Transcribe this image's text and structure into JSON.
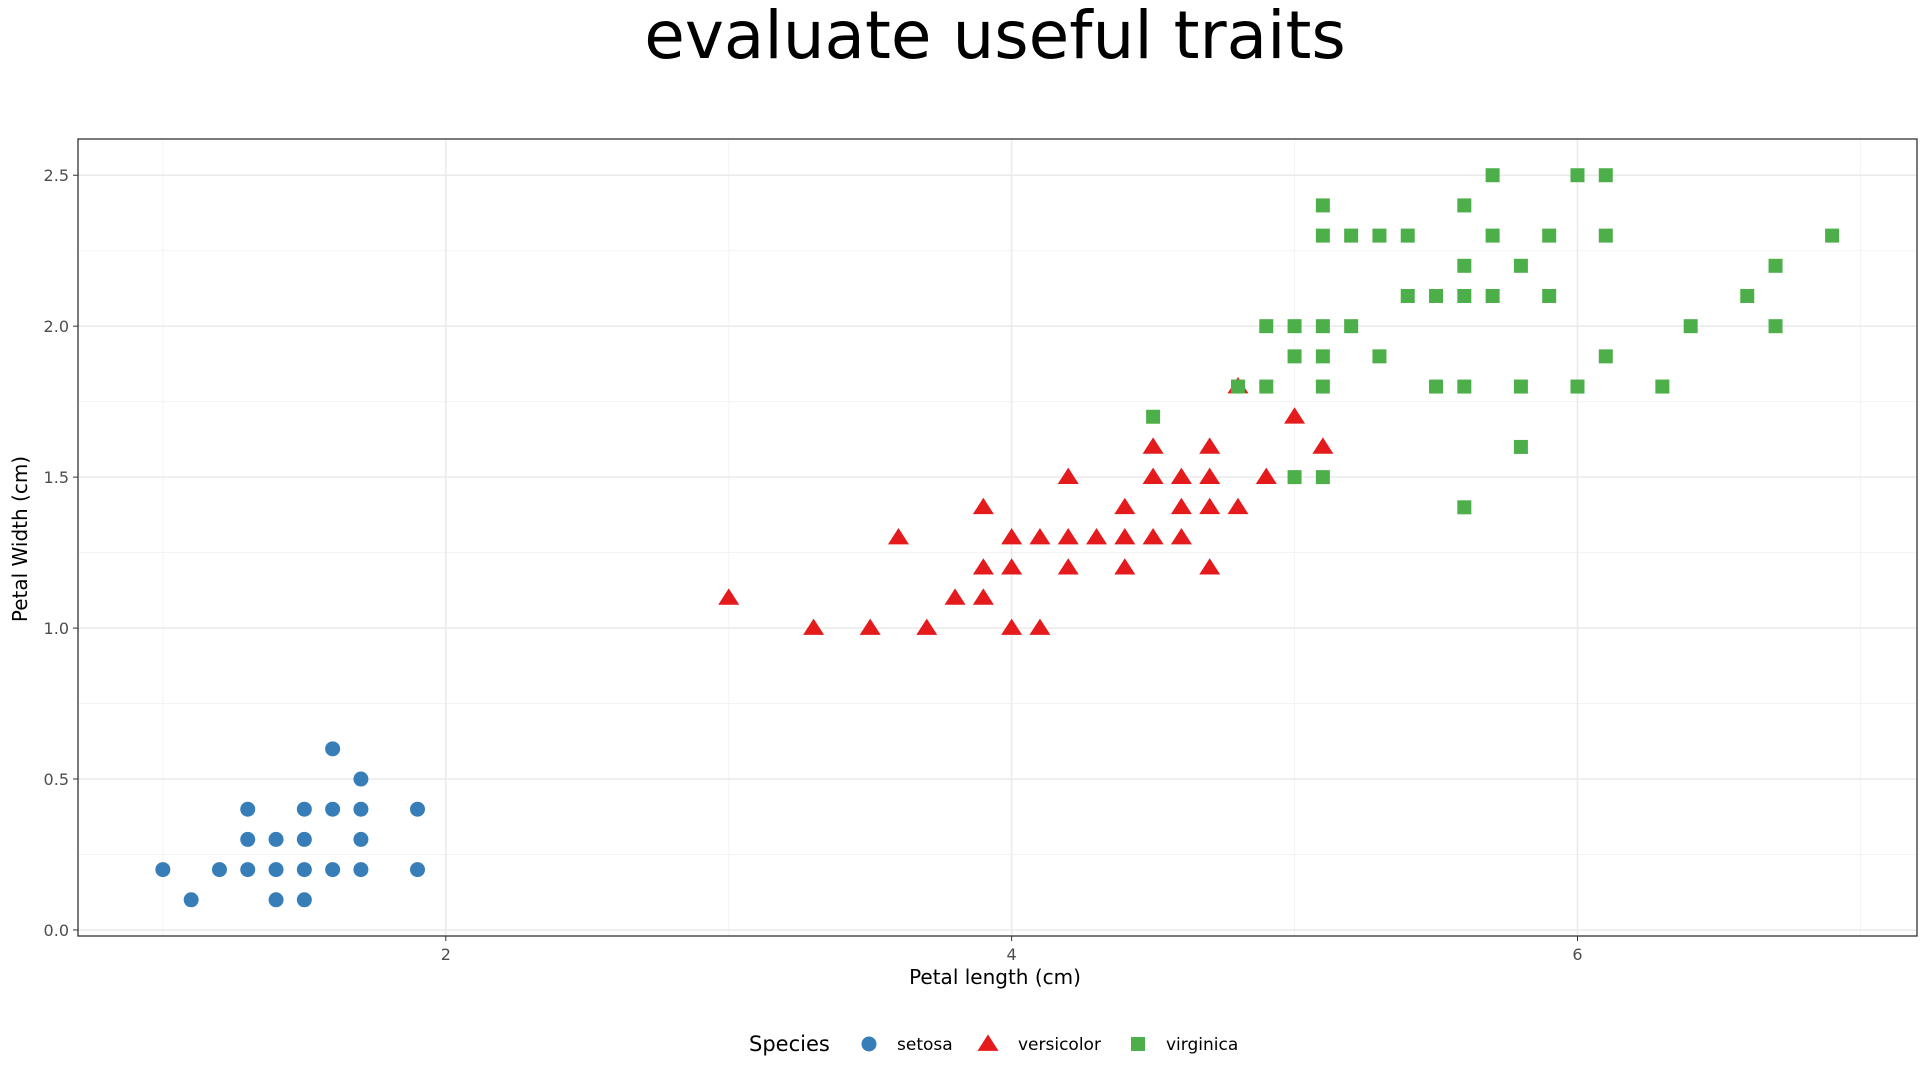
{
  "chart_data": {
    "type": "scatter",
    "title": "evaluate useful traits",
    "xlabel": "Petal length (cm)",
    "ylabel": "Petal Width (cm)",
    "xlim": [
      0.7,
      7.2
    ],
    "ylim": [
      -0.02,
      2.62
    ],
    "x_ticks": [
      2,
      4,
      6
    ],
    "x_tick_labels": [
      "2",
      "4",
      "6"
    ],
    "y_ticks": [
      0,
      0.5,
      1,
      1.5,
      2,
      2.5
    ],
    "y_tick_labels": [
      "0.0",
      "0.5",
      "1.0",
      "1.5",
      "2.0",
      "2.5"
    ],
    "grid": true,
    "legend": {
      "title": "Species",
      "placement": "bottom"
    },
    "series": [
      {
        "name": "setosa",
        "color": "#377EB8",
        "shape": "circle",
        "points": [
          [
            1.0,
            0.2
          ],
          [
            1.1,
            0.1
          ],
          [
            1.2,
            0.2
          ],
          [
            1.3,
            0.2
          ],
          [
            1.3,
            0.3
          ],
          [
            1.3,
            0.4
          ],
          [
            1.4,
            0.1
          ],
          [
            1.4,
            0.2
          ],
          [
            1.4,
            0.3
          ],
          [
            1.5,
            0.1
          ],
          [
            1.5,
            0.2
          ],
          [
            1.5,
            0.3
          ],
          [
            1.5,
            0.4
          ],
          [
            1.6,
            0.2
          ],
          [
            1.6,
            0.4
          ],
          [
            1.6,
            0.6
          ],
          [
            1.7,
            0.2
          ],
          [
            1.7,
            0.3
          ],
          [
            1.7,
            0.4
          ],
          [
            1.7,
            0.5
          ],
          [
            1.9,
            0.2
          ],
          [
            1.9,
            0.4
          ]
        ]
      },
      {
        "name": "versicolor",
        "color": "#E41A1C",
        "shape": "triangle",
        "points": [
          [
            3.0,
            1.1
          ],
          [
            3.3,
            1.0
          ],
          [
            3.5,
            1.0
          ],
          [
            3.6,
            1.3
          ],
          [
            3.7,
            1.0
          ],
          [
            3.8,
            1.1
          ],
          [
            3.9,
            1.1
          ],
          [
            3.9,
            1.2
          ],
          [
            3.9,
            1.4
          ],
          [
            4.0,
            1.0
          ],
          [
            4.0,
            1.2
          ],
          [
            4.0,
            1.3
          ],
          [
            4.1,
            1.0
          ],
          [
            4.1,
            1.3
          ],
          [
            4.2,
            1.2
          ],
          [
            4.2,
            1.3
          ],
          [
            4.2,
            1.5
          ],
          [
            4.3,
            1.3
          ],
          [
            4.4,
            1.2
          ],
          [
            4.4,
            1.3
          ],
          [
            4.4,
            1.4
          ],
          [
            4.5,
            1.3
          ],
          [
            4.5,
            1.5
          ],
          [
            4.5,
            1.6
          ],
          [
            4.6,
            1.3
          ],
          [
            4.6,
            1.4
          ],
          [
            4.6,
            1.5
          ],
          [
            4.7,
            1.2
          ],
          [
            4.7,
            1.4
          ],
          [
            4.7,
            1.5
          ],
          [
            4.7,
            1.6
          ],
          [
            4.8,
            1.4
          ],
          [
            4.8,
            1.8
          ],
          [
            4.9,
            1.5
          ],
          [
            5.0,
            1.7
          ],
          [
            5.1,
            1.6
          ]
        ]
      },
      {
        "name": "virginica",
        "color": "#4DAF4A",
        "shape": "square",
        "points": [
          [
            4.5,
            1.7
          ],
          [
            4.8,
            1.8
          ],
          [
            4.9,
            1.8
          ],
          [
            4.9,
            2.0
          ],
          [
            5.0,
            1.5
          ],
          [
            5.0,
            1.9
          ],
          [
            5.0,
            2.0
          ],
          [
            5.1,
            1.5
          ],
          [
            5.1,
            1.8
          ],
          [
            5.1,
            1.9
          ],
          [
            5.1,
            2.0
          ],
          [
            5.1,
            2.3
          ],
          [
            5.1,
            2.4
          ],
          [
            5.2,
            2.0
          ],
          [
            5.2,
            2.3
          ],
          [
            5.3,
            1.9
          ],
          [
            5.3,
            2.3
          ],
          [
            5.4,
            2.1
          ],
          [
            5.4,
            2.3
          ],
          [
            5.5,
            1.8
          ],
          [
            5.5,
            2.1
          ],
          [
            5.6,
            1.4
          ],
          [
            5.6,
            1.8
          ],
          [
            5.6,
            2.1
          ],
          [
            5.6,
            2.2
          ],
          [
            5.6,
            2.4
          ],
          [
            5.7,
            2.1
          ],
          [
            5.7,
            2.3
          ],
          [
            5.7,
            2.5
          ],
          [
            5.8,
            1.6
          ],
          [
            5.8,
            1.8
          ],
          [
            5.8,
            2.2
          ],
          [
            5.9,
            2.1
          ],
          [
            5.9,
            2.3
          ],
          [
            6.0,
            1.8
          ],
          [
            6.0,
            2.5
          ],
          [
            6.1,
            1.9
          ],
          [
            6.1,
            2.3
          ],
          [
            6.1,
            2.5
          ],
          [
            6.3,
            1.8
          ],
          [
            6.4,
            2.0
          ],
          [
            6.6,
            2.1
          ],
          [
            6.7,
            2.0
          ],
          [
            6.7,
            2.2
          ],
          [
            6.9,
            2.3
          ]
        ]
      }
    ]
  }
}
